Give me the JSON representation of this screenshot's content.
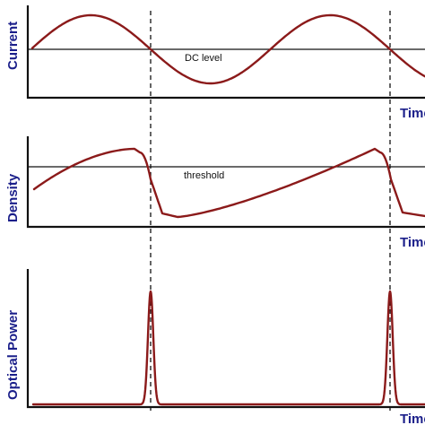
{
  "colors": {
    "trace": "#8b1a1a",
    "axis_label": "#1b1f8a",
    "axis": "#111111"
  },
  "panels": {
    "current": {
      "ylabel": "Current",
      "xlabel": "Time",
      "reference_label": "DC level"
    },
    "density": {
      "ylabel": "Density",
      "xlabel": "Time",
      "reference_label": "threshold"
    },
    "optical": {
      "ylabel": "Optical Power",
      "xlabel": "Time"
    }
  }
}
